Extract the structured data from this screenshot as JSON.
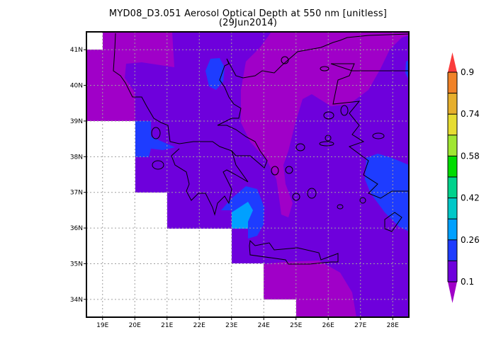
{
  "title": {
    "line1": "MYD08_D3.051 Aerosol Optical Depth at 550 nm [unitless]",
    "line2": "(29Jun2014)"
  },
  "map": {
    "lon_range": [
      18.5,
      28.5
    ],
    "lat_range": [
      33.5,
      41.5
    ],
    "lon_ticks": [
      "19E",
      "20E",
      "21E",
      "22E",
      "23E",
      "24E",
      "25E",
      "26E",
      "27E",
      "28E"
    ],
    "lat_ticks": [
      "41N",
      "40N",
      "39N",
      "38N",
      "37N",
      "36N",
      "35N",
      "34N"
    ],
    "grid": true,
    "missing_color": "#ffffff",
    "coastline_color": "#000000"
  },
  "colorbar": {
    "labels": [
      "0.9",
      "0.74",
      "0.58",
      "0.42",
      "0.26",
      "0.1"
    ],
    "levels": [
      0.1,
      0.18,
      0.26,
      0.34,
      0.42,
      0.5,
      0.58,
      0.66,
      0.74,
      0.82,
      0.9
    ],
    "below_color": "#a000c8",
    "above_color": "#fa3c3c",
    "colors": [
      "#6e00dc",
      "#1e3cff",
      "#00a0ff",
      "#00c8c8",
      "#00d28c",
      "#00dc00",
      "#a0e632",
      "#e6dc32",
      "#e6af2d",
      "#f08228"
    ]
  }
}
